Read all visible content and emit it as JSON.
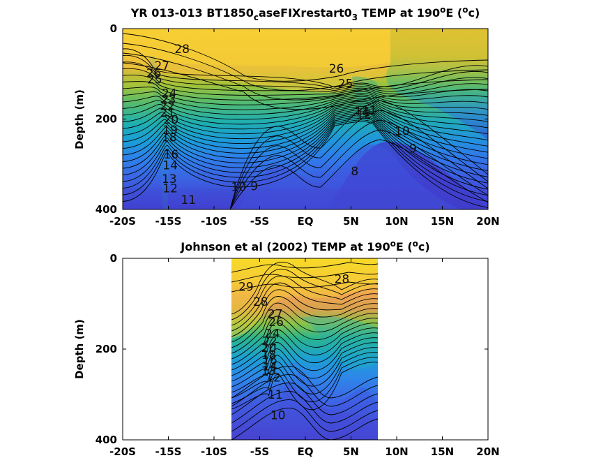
{
  "chart_data": [
    {
      "type": "heatmap",
      "title_parts": {
        "pre": "YR 013-013 BT1850",
        "sub1": "c",
        "mid": "aseFIXrestart0",
        "sub2": "3",
        "post1": " TEMP at 190",
        "sup1": "o",
        "post2": "E (",
        "sup2": "o",
        "post3": "c)"
      },
      "ylabel": "Depth (m)",
      "x_ticks": [
        "-20S",
        "-15S",
        "-10S",
        "-5S",
        "EQ",
        "5N",
        "10N",
        "15N",
        "20N"
      ],
      "x_tick_values": [
        -20,
        -15,
        -10,
        -5,
        0,
        5,
        10,
        15,
        20
      ],
      "y_ticks": [
        "0",
        "200",
        "400"
      ],
      "y_tick_values": [
        0,
        200,
        400
      ],
      "xlim": [
        -20,
        20
      ],
      "ylim": [
        0,
        400
      ],
      "data_lat_range": [
        -20,
        20
      ],
      "contour_labels": [
        {
          "text": "28",
          "lat": -13.5,
          "depth": 45
        },
        {
          "text": "27",
          "lat": -15.7,
          "depth": 82
        },
        {
          "text": "26",
          "lat": -16.6,
          "depth": 98
        },
        {
          "text": "25",
          "lat": -16.5,
          "depth": 112
        },
        {
          "text": "24",
          "lat": -14.9,
          "depth": 143
        },
        {
          "text": "23",
          "lat": -15.0,
          "depth": 157
        },
        {
          "text": "22",
          "lat": -15.1,
          "depth": 171
        },
        {
          "text": "21",
          "lat": -15.1,
          "depth": 186
        },
        {
          "text": "20",
          "lat": -14.7,
          "depth": 201
        },
        {
          "text": "19",
          "lat": -14.8,
          "depth": 224
        },
        {
          "text": "18",
          "lat": -14.9,
          "depth": 240
        },
        {
          "text": "16",
          "lat": -14.7,
          "depth": 278
        },
        {
          "text": "14",
          "lat": -14.8,
          "depth": 302
        },
        {
          "text": "13",
          "lat": -14.9,
          "depth": 332
        },
        {
          "text": "12",
          "lat": -14.8,
          "depth": 353
        },
        {
          "text": "11",
          "lat": -12.8,
          "depth": 378
        },
        {
          "text": "10",
          "lat": -7.3,
          "depth": 350
        },
        {
          "text": "9",
          "lat": -5.6,
          "depth": 348
        },
        {
          "text": "8",
          "lat": 5.4,
          "depth": 315
        },
        {
          "text": "10",
          "lat": 10.6,
          "depth": 226
        },
        {
          "text": "9",
          "lat": 11.8,
          "depth": 265
        },
        {
          "text": "26",
          "lat": 3.4,
          "depth": 88
        },
        {
          "text": "25",
          "lat": 4.4,
          "depth": 121
        },
        {
          "text": "14",
          "lat": 6.2,
          "depth": 183
        },
        {
          "text": "12",
          "lat": 6.4,
          "depth": 190
        },
        {
          "text": "11",
          "lat": 7.0,
          "depth": 181
        }
      ]
    },
    {
      "type": "heatmap",
      "title_parts": {
        "pre": "Johnson et al (2002) TEMP at 190",
        "sup1": "o",
        "post2": "E (",
        "sup2": "o",
        "post3": "c)"
      },
      "ylabel": "Depth (m)",
      "x_ticks": [
        "-20S",
        "-15S",
        "-10S",
        "-5S",
        "EQ",
        "5N",
        "10N",
        "15N",
        "20N"
      ],
      "x_tick_values": [
        -20,
        -15,
        -10,
        -5,
        0,
        5,
        10,
        15,
        20
      ],
      "y_ticks": [
        "0",
        "200",
        "400"
      ],
      "y_tick_values": [
        0,
        200,
        400
      ],
      "xlim": [
        -20,
        20
      ],
      "ylim": [
        0,
        400
      ],
      "data_lat_range": [
        -8,
        8
      ],
      "contour_labels": [
        {
          "text": "29",
          "lat": -6.5,
          "depth": 62
        },
        {
          "text": "28",
          "lat": -4.9,
          "depth": 95
        },
        {
          "text": "28",
          "lat": 4.0,
          "depth": 45
        },
        {
          "text": "27",
          "lat": -3.3,
          "depth": 122
        },
        {
          "text": "26",
          "lat": -3.2,
          "depth": 140
        },
        {
          "text": "24",
          "lat": -3.6,
          "depth": 165
        },
        {
          "text": "22",
          "lat": -3.9,
          "depth": 182
        },
        {
          "text": "20",
          "lat": -4.0,
          "depth": 197
        },
        {
          "text": "18",
          "lat": -4.0,
          "depth": 212
        },
        {
          "text": "16",
          "lat": -3.9,
          "depth": 224
        },
        {
          "text": "14",
          "lat": -3.9,
          "depth": 238
        },
        {
          "text": "13",
          "lat": -4.0,
          "depth": 248
        },
        {
          "text": "12",
          "lat": -3.5,
          "depth": 262
        },
        {
          "text": "11",
          "lat": -3.3,
          "depth": 300
        },
        {
          "text": "10",
          "lat": -3.0,
          "depth": 345
        }
      ]
    }
  ]
}
